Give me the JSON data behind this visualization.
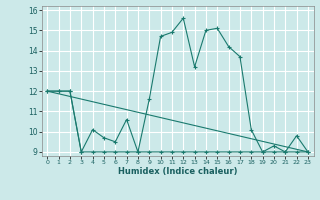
{
  "title": "",
  "xlabel": "Humidex (Indice chaleur)",
  "bg_color": "#cce9e9",
  "line_color": "#1a7a6e",
  "grid_color": "#aadddd",
  "xlim": [
    -0.5,
    23.5
  ],
  "ylim": [
    8.8,
    16.2
  ],
  "xticks": [
    0,
    1,
    2,
    3,
    4,
    5,
    6,
    7,
    8,
    9,
    10,
    11,
    12,
    13,
    14,
    15,
    16,
    17,
    18,
    19,
    20,
    21,
    22,
    23
  ],
  "yticks": [
    9,
    10,
    11,
    12,
    13,
    14,
    15,
    16
  ],
  "curve1_x": [
    0,
    1,
    2,
    3,
    4,
    5,
    6,
    7,
    8,
    9,
    10,
    11,
    12,
    13,
    14,
    15,
    16,
    17,
    18,
    19,
    20,
    21,
    22,
    23
  ],
  "curve1_y": [
    12,
    12,
    12,
    9,
    10.1,
    9.7,
    9.5,
    10.6,
    9,
    11.6,
    14.7,
    14.9,
    15.6,
    13.2,
    15.0,
    15.1,
    14.2,
    13.7,
    10.1,
    9,
    9.3,
    9,
    9.8,
    9
  ],
  "curve2_x": [
    0,
    1,
    2,
    3,
    4,
    5,
    6,
    7,
    8,
    9,
    10,
    11,
    12,
    13,
    14,
    15,
    16,
    17,
    18,
    19,
    20,
    21,
    22,
    23
  ],
  "curve2_y": [
    12,
    12,
    12,
    9,
    9,
    9,
    9,
    9,
    9,
    9,
    9,
    9,
    9,
    9,
    9,
    9,
    9,
    9,
    9,
    9,
    9,
    9,
    9,
    9
  ]
}
